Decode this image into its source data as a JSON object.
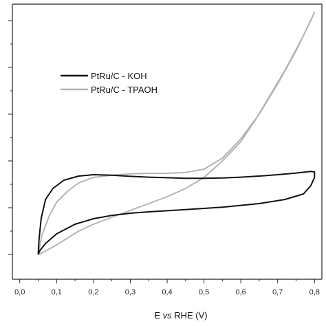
{
  "chart_data": {
    "type": "line",
    "title": "",
    "xlabel_prefix": "E ",
    "xlabel_italic": "vs",
    "xlabel_suffix": " RHE (V)",
    "ylabel": "",
    "xlim": [
      -0.02,
      0.82
    ],
    "ylim": [
      0,
      1
    ],
    "x_ticks": [
      0.0,
      0.1,
      0.2,
      0.3,
      0.4,
      0.5,
      0.6,
      0.7,
      0.8
    ],
    "x_tick_labels": [
      "0,0",
      "0,1",
      "0,2",
      "0,3",
      "0,4",
      "0,5",
      "0,6",
      "0,7",
      "0,8"
    ],
    "y_ticks": [
      0.09,
      0.26,
      0.43,
      0.6,
      0.77,
      0.94
    ],
    "y_tick_labels": [
      "",
      "",
      "",
      "",
      "",
      ""
    ],
    "legend_position": "upper-left",
    "series": [
      {
        "name": "PtRu/C - KOH",
        "color": "#111111",
        "stroke_width": 2.0,
        "x": [
          0.05,
          0.052,
          0.058,
          0.07,
          0.09,
          0.12,
          0.16,
          0.2,
          0.25,
          0.3,
          0.35,
          0.4,
          0.45,
          0.5,
          0.55,
          0.6,
          0.65,
          0.7,
          0.75,
          0.79,
          0.8,
          0.8,
          0.79,
          0.77,
          0.72,
          0.65,
          0.55,
          0.45,
          0.35,
          0.3,
          0.25,
          0.2,
          0.15,
          0.1,
          0.07,
          0.055,
          0.05
        ],
        "y": [
          0.09,
          0.14,
          0.22,
          0.29,
          0.33,
          0.36,
          0.375,
          0.38,
          0.378,
          0.374,
          0.371,
          0.369,
          0.367,
          0.367,
          0.368,
          0.371,
          0.375,
          0.38,
          0.386,
          0.392,
          0.39,
          0.37,
          0.34,
          0.31,
          0.29,
          0.275,
          0.262,
          0.253,
          0.245,
          0.24,
          0.232,
          0.22,
          0.2,
          0.165,
          0.13,
          0.105,
          0.09
        ]
      },
      {
        "name": "PtRu/C - TPAOH",
        "color": "#b4b4b4",
        "stroke_width": 2.0,
        "x": [
          0.05,
          0.06,
          0.08,
          0.1,
          0.13,
          0.16,
          0.2,
          0.25,
          0.3,
          0.35,
          0.4,
          0.45,
          0.5,
          0.55,
          0.6,
          0.65,
          0.7,
          0.75,
          0.8,
          0.79,
          0.76,
          0.72,
          0.68,
          0.64,
          0.6,
          0.55,
          0.5,
          0.45,
          0.4,
          0.35,
          0.3,
          0.25,
          0.2,
          0.16,
          0.13,
          0.1,
          0.08,
          0.06,
          0.05
        ],
        "y": [
          0.09,
          0.16,
          0.23,
          0.28,
          0.32,
          0.35,
          0.37,
          0.378,
          0.383,
          0.385,
          0.385,
          0.388,
          0.4,
          0.44,
          0.51,
          0.6,
          0.71,
          0.83,
          0.97,
          0.94,
          0.86,
          0.76,
          0.67,
          0.58,
          0.5,
          0.43,
          0.37,
          0.33,
          0.3,
          0.275,
          0.25,
          0.225,
          0.2,
          0.175,
          0.15,
          0.125,
          0.11,
          0.095,
          0.09
        ]
      }
    ]
  }
}
